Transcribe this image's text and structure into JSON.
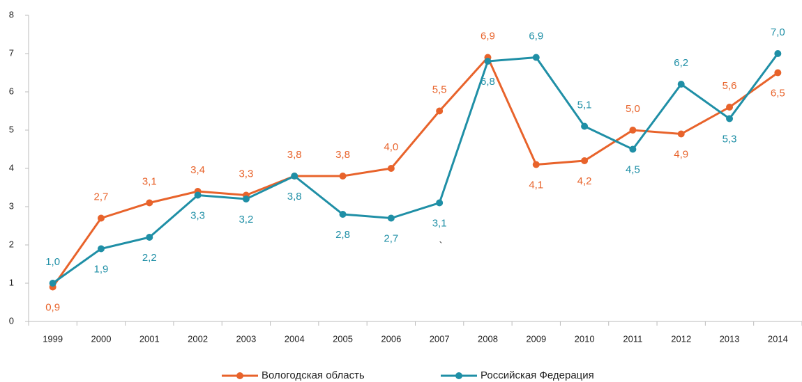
{
  "chart_data": {
    "type": "line",
    "categories": [
      "1999",
      "2000",
      "2001",
      "2002",
      "2003",
      "2004",
      "2005",
      "2006",
      "2007",
      "2008",
      "2009",
      "2010",
      "2011",
      "2012",
      "2013",
      "2014"
    ],
    "series": [
      {
        "name": "Вологодская область",
        "color": "#e8632b",
        "values": [
          0.9,
          2.7,
          3.1,
          3.4,
          3.3,
          3.8,
          3.8,
          4.0,
          5.5,
          6.9,
          4.1,
          4.2,
          5.0,
          4.9,
          5.6,
          6.5
        ],
        "value_labels": [
          "0,9",
          "2,7",
          "3,1",
          "3,4",
          "3,3",
          "3,8",
          "3,8",
          "4,0",
          "5,5",
          "6,9",
          "4,1",
          "4,2",
          "5,0",
          "4,9",
          "5,6",
          "6,5"
        ]
      },
      {
        "name": "Российская Федерация",
        "color": "#1f8fa6",
        "values": [
          1.0,
          1.9,
          2.2,
          3.3,
          3.2,
          3.8,
          2.8,
          2.7,
          3.1,
          6.8,
          6.9,
          5.1,
          4.5,
          6.2,
          5.3,
          7.0
        ],
        "value_labels": [
          "1,0",
          "1,9",
          "2,2",
          "3,3",
          "3,2",
          "3,8",
          "2,8",
          "2,7",
          "3,1",
          "6,8",
          "6,9",
          "5,1",
          "4,5",
          "6,2",
          "5,3",
          "7,0"
        ]
      }
    ],
    "annotation": "`",
    "ylim": [
      0,
      8
    ],
    "yticks": [
      0,
      1,
      2,
      3,
      4,
      5,
      6,
      7,
      8
    ],
    "grid": false,
    "legend": "bottom"
  }
}
